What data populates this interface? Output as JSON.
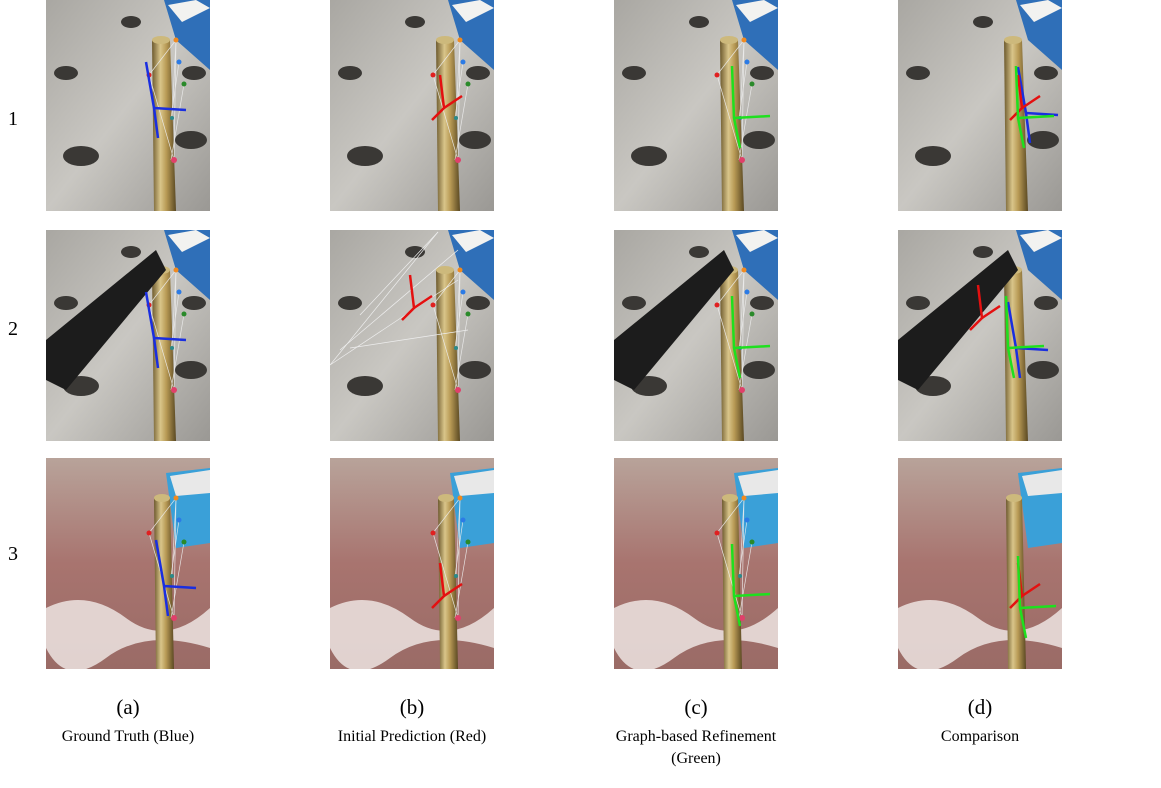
{
  "rows": [
    "1",
    "2",
    "3"
  ],
  "columns": [
    {
      "letter": "(a)",
      "caption": "Ground Truth (Blue)"
    },
    {
      "letter": "(b)",
      "caption": "Initial Prediction (Red)"
    },
    {
      "letter": "(c)",
      "caption": "Graph-based Refinement (Green)"
    },
    {
      "letter": "(d)",
      "caption": "Comparison"
    }
  ]
}
